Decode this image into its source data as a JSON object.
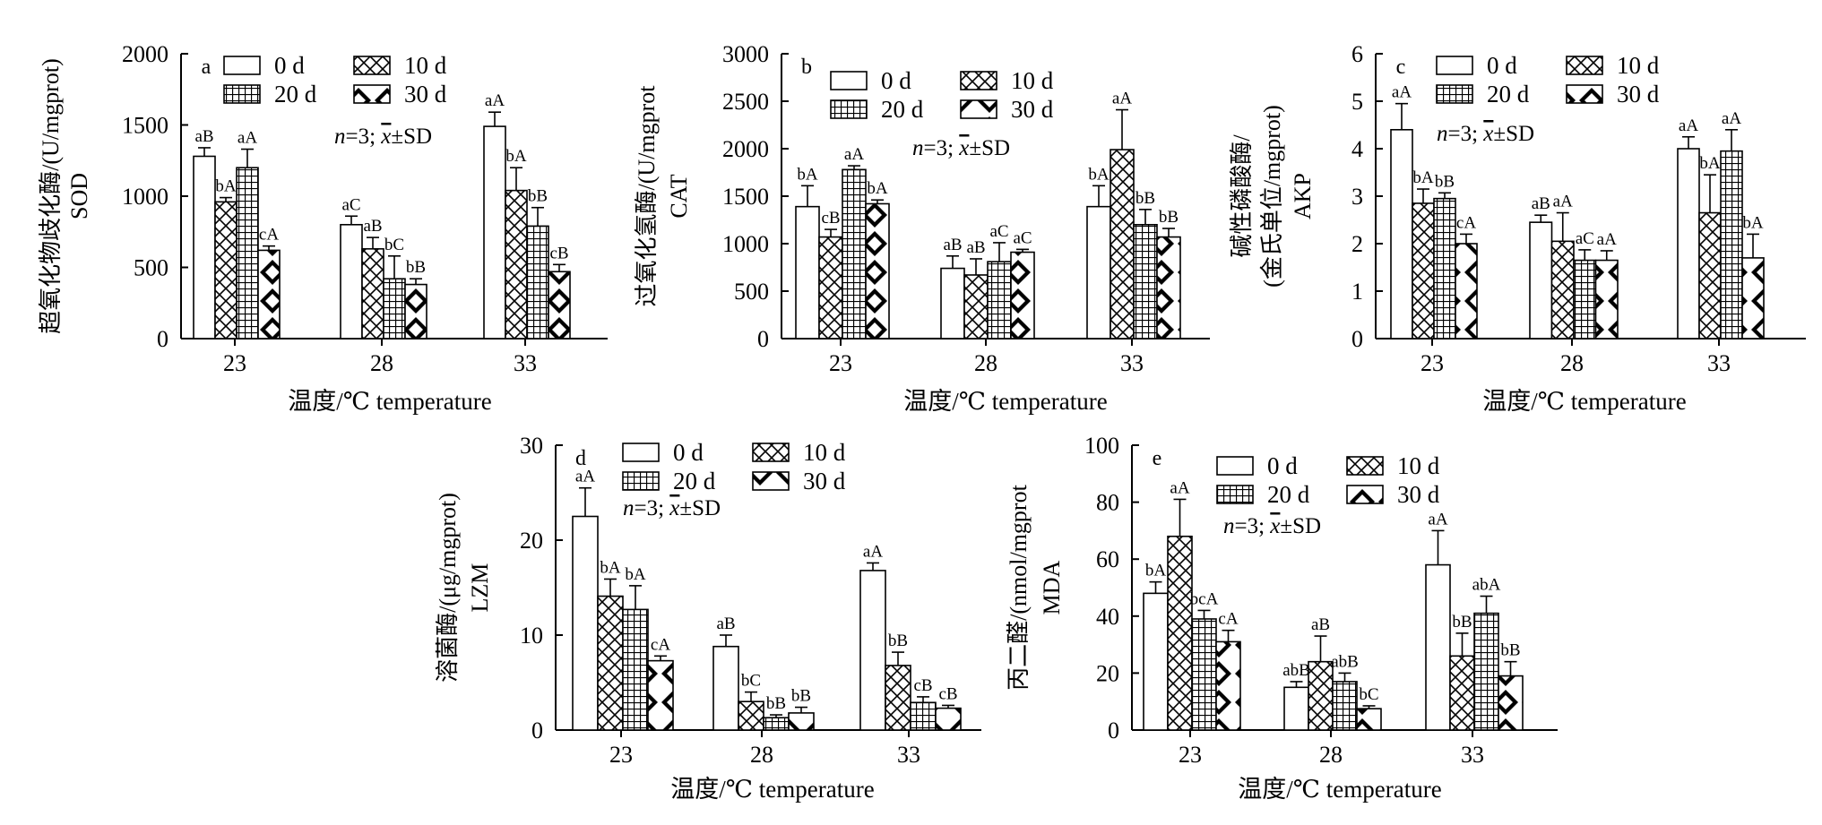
{
  "legend": [
    {
      "label": "0 d",
      "pattern": "blank"
    },
    {
      "label": "10 d",
      "pattern": "crosshatch"
    },
    {
      "label": "20 d",
      "pattern": "grid"
    },
    {
      "label": "30 d",
      "pattern": "checker"
    }
  ],
  "note": {
    "prefix": "n",
    "middle": "=3; ",
    "xbar": "x",
    "suffix": "±SD"
  },
  "x_axis_label": "温度/℃ temperature",
  "chart_data": [
    {
      "type": "bar",
      "panel": "a",
      "ylabel_lines": [
        "超氧化物歧化酶/(U/mgprot)",
        "SOD"
      ],
      "categories": [
        "23",
        "28",
        "33"
      ],
      "ylim": [
        0,
        2000
      ],
      "yticks": [
        0,
        500,
        1000,
        1500,
        2000
      ],
      "series": [
        {
          "name": "0 d",
          "values": [
            1280,
            800,
            1490
          ],
          "err": [
            60,
            60,
            100
          ],
          "labels": [
            "aB",
            "aC",
            "aA"
          ]
        },
        {
          "name": "10 d",
          "values": [
            960,
            630,
            1040
          ],
          "err": [
            30,
            80,
            160
          ],
          "labels": [
            "bA",
            "aB",
            "bA"
          ]
        },
        {
          "name": "20 d",
          "values": [
            1200,
            420,
            790
          ],
          "err": [
            130,
            160,
            130
          ],
          "labels": [
            "aA",
            "bC",
            "bB"
          ]
        },
        {
          "name": "30 d",
          "values": [
            620,
            380,
            470
          ],
          "err": [
            30,
            40,
            50
          ],
          "labels": [
            "cA",
            "bB",
            "cB"
          ]
        }
      ]
    },
    {
      "type": "bar",
      "panel": "b",
      "ylabel_lines": [
        "过氧化氢酶/(U/mgprot",
        "CAT"
      ],
      "categories": [
        "23",
        "28",
        "33"
      ],
      "ylim": [
        0,
        3000
      ],
      "yticks": [
        0,
        500,
        1000,
        1500,
        2000,
        2500,
        3000
      ],
      "series": [
        {
          "name": "0 d",
          "values": [
            1390,
            740,
            1390
          ],
          "err": [
            220,
            130,
            220
          ],
          "labels": [
            "bA",
            "aB",
            "bA"
          ]
        },
        {
          "name": "10 d",
          "values": [
            1070,
            670,
            1990
          ],
          "err": [
            80,
            170,
            420
          ],
          "labels": [
            "cB",
            "aB",
            "aA"
          ]
        },
        {
          "name": "20 d",
          "values": [
            1780,
            810,
            1200
          ],
          "err": [
            40,
            200,
            160
          ],
          "labels": [
            "aA",
            "aC",
            "bB"
          ]
        },
        {
          "name": "30 d",
          "values": [
            1420,
            910,
            1070
          ],
          "err": [
            40,
            30,
            90
          ],
          "labels": [
            "bA",
            "aC",
            "bB"
          ]
        }
      ]
    },
    {
      "type": "bar",
      "panel": "c",
      "ylabel_lines": [
        "碱性磷酸酶/",
        "(金氏单位/mgprot)",
        "AKP"
      ],
      "categories": [
        "23",
        "28",
        "33"
      ],
      "ylim": [
        0,
        6
      ],
      "yticks": [
        0,
        1,
        2,
        3,
        4,
        5,
        6
      ],
      "series": [
        {
          "name": "0 d",
          "values": [
            4.4,
            2.45,
            4.0
          ],
          "err": [
            0.55,
            0.15,
            0.25
          ],
          "labels": [
            "aA",
            "aB",
            "aA"
          ]
        },
        {
          "name": "10 d",
          "values": [
            2.85,
            2.05,
            2.65
          ],
          "err": [
            0.3,
            0.6,
            0.8
          ],
          "labels": [
            "bA",
            "aA",
            "bA"
          ]
        },
        {
          "name": "20 d",
          "values": [
            2.95,
            1.65,
            3.95
          ],
          "err": [
            0.12,
            0.22,
            0.45
          ],
          "labels": [
            "bB",
            "aC",
            "aA"
          ]
        },
        {
          "name": "30 d",
          "values": [
            2.0,
            1.65,
            1.7
          ],
          "err": [
            0.2,
            0.2,
            0.5
          ],
          "labels": [
            "cA",
            "aA",
            "bA"
          ]
        }
      ]
    },
    {
      "type": "bar",
      "panel": "d",
      "ylabel_lines": [
        "溶菌酶/(μg/mgprot)",
        "LZM"
      ],
      "categories": [
        "23",
        "28",
        "33"
      ],
      "ylim": [
        0,
        30
      ],
      "yticks": [
        0,
        10,
        20,
        30
      ],
      "series": [
        {
          "name": "0 d",
          "values": [
            22.5,
            8.8,
            16.8
          ],
          "err": [
            3.0,
            1.2,
            0.8
          ],
          "labels": [
            "aA",
            "aB",
            "aA"
          ]
        },
        {
          "name": "10 d",
          "values": [
            14.1,
            3.0,
            6.8
          ],
          "err": [
            1.8,
            1.0,
            1.4
          ],
          "labels": [
            "bA",
            "bC",
            "bB"
          ]
        },
        {
          "name": "20 d",
          "values": [
            12.7,
            1.3,
            2.9
          ],
          "err": [
            2.5,
            0.3,
            0.6
          ],
          "labels": [
            "bA",
            "bB",
            "cB"
          ]
        },
        {
          "name": "30 d",
          "values": [
            7.3,
            1.8,
            2.3
          ],
          "err": [
            0.5,
            0.6,
            0.3
          ],
          "labels": [
            "cA",
            "bB",
            "cB"
          ]
        }
      ]
    },
    {
      "type": "bar",
      "panel": "e",
      "ylabel_lines": [
        "丙二醛/(nmol/mgprot",
        "MDA"
      ],
      "categories": [
        "23",
        "28",
        "33"
      ],
      "ylim": [
        0,
        100
      ],
      "yticks": [
        0,
        20,
        40,
        60,
        80,
        100
      ],
      "series": [
        {
          "name": "0 d",
          "values": [
            48,
            15,
            58
          ],
          "err": [
            4,
            2,
            12
          ],
          "labels": [
            "bA",
            "abB",
            "aA"
          ]
        },
        {
          "name": "10 d",
          "values": [
            68,
            24,
            26
          ],
          "err": [
            13,
            9,
            8
          ],
          "labels": [
            "aA",
            "aB",
            "bB"
          ]
        },
        {
          "name": "20 d",
          "values": [
            39,
            17,
            41
          ],
          "err": [
            3,
            3,
            6
          ],
          "labels": [
            "bcA",
            "abB",
            "abA"
          ]
        },
        {
          "name": "30 d",
          "values": [
            31,
            7.5,
            19
          ],
          "err": [
            4,
            1,
            5
          ],
          "labels": [
            "cA",
            "bC",
            "bB"
          ]
        }
      ]
    }
  ]
}
